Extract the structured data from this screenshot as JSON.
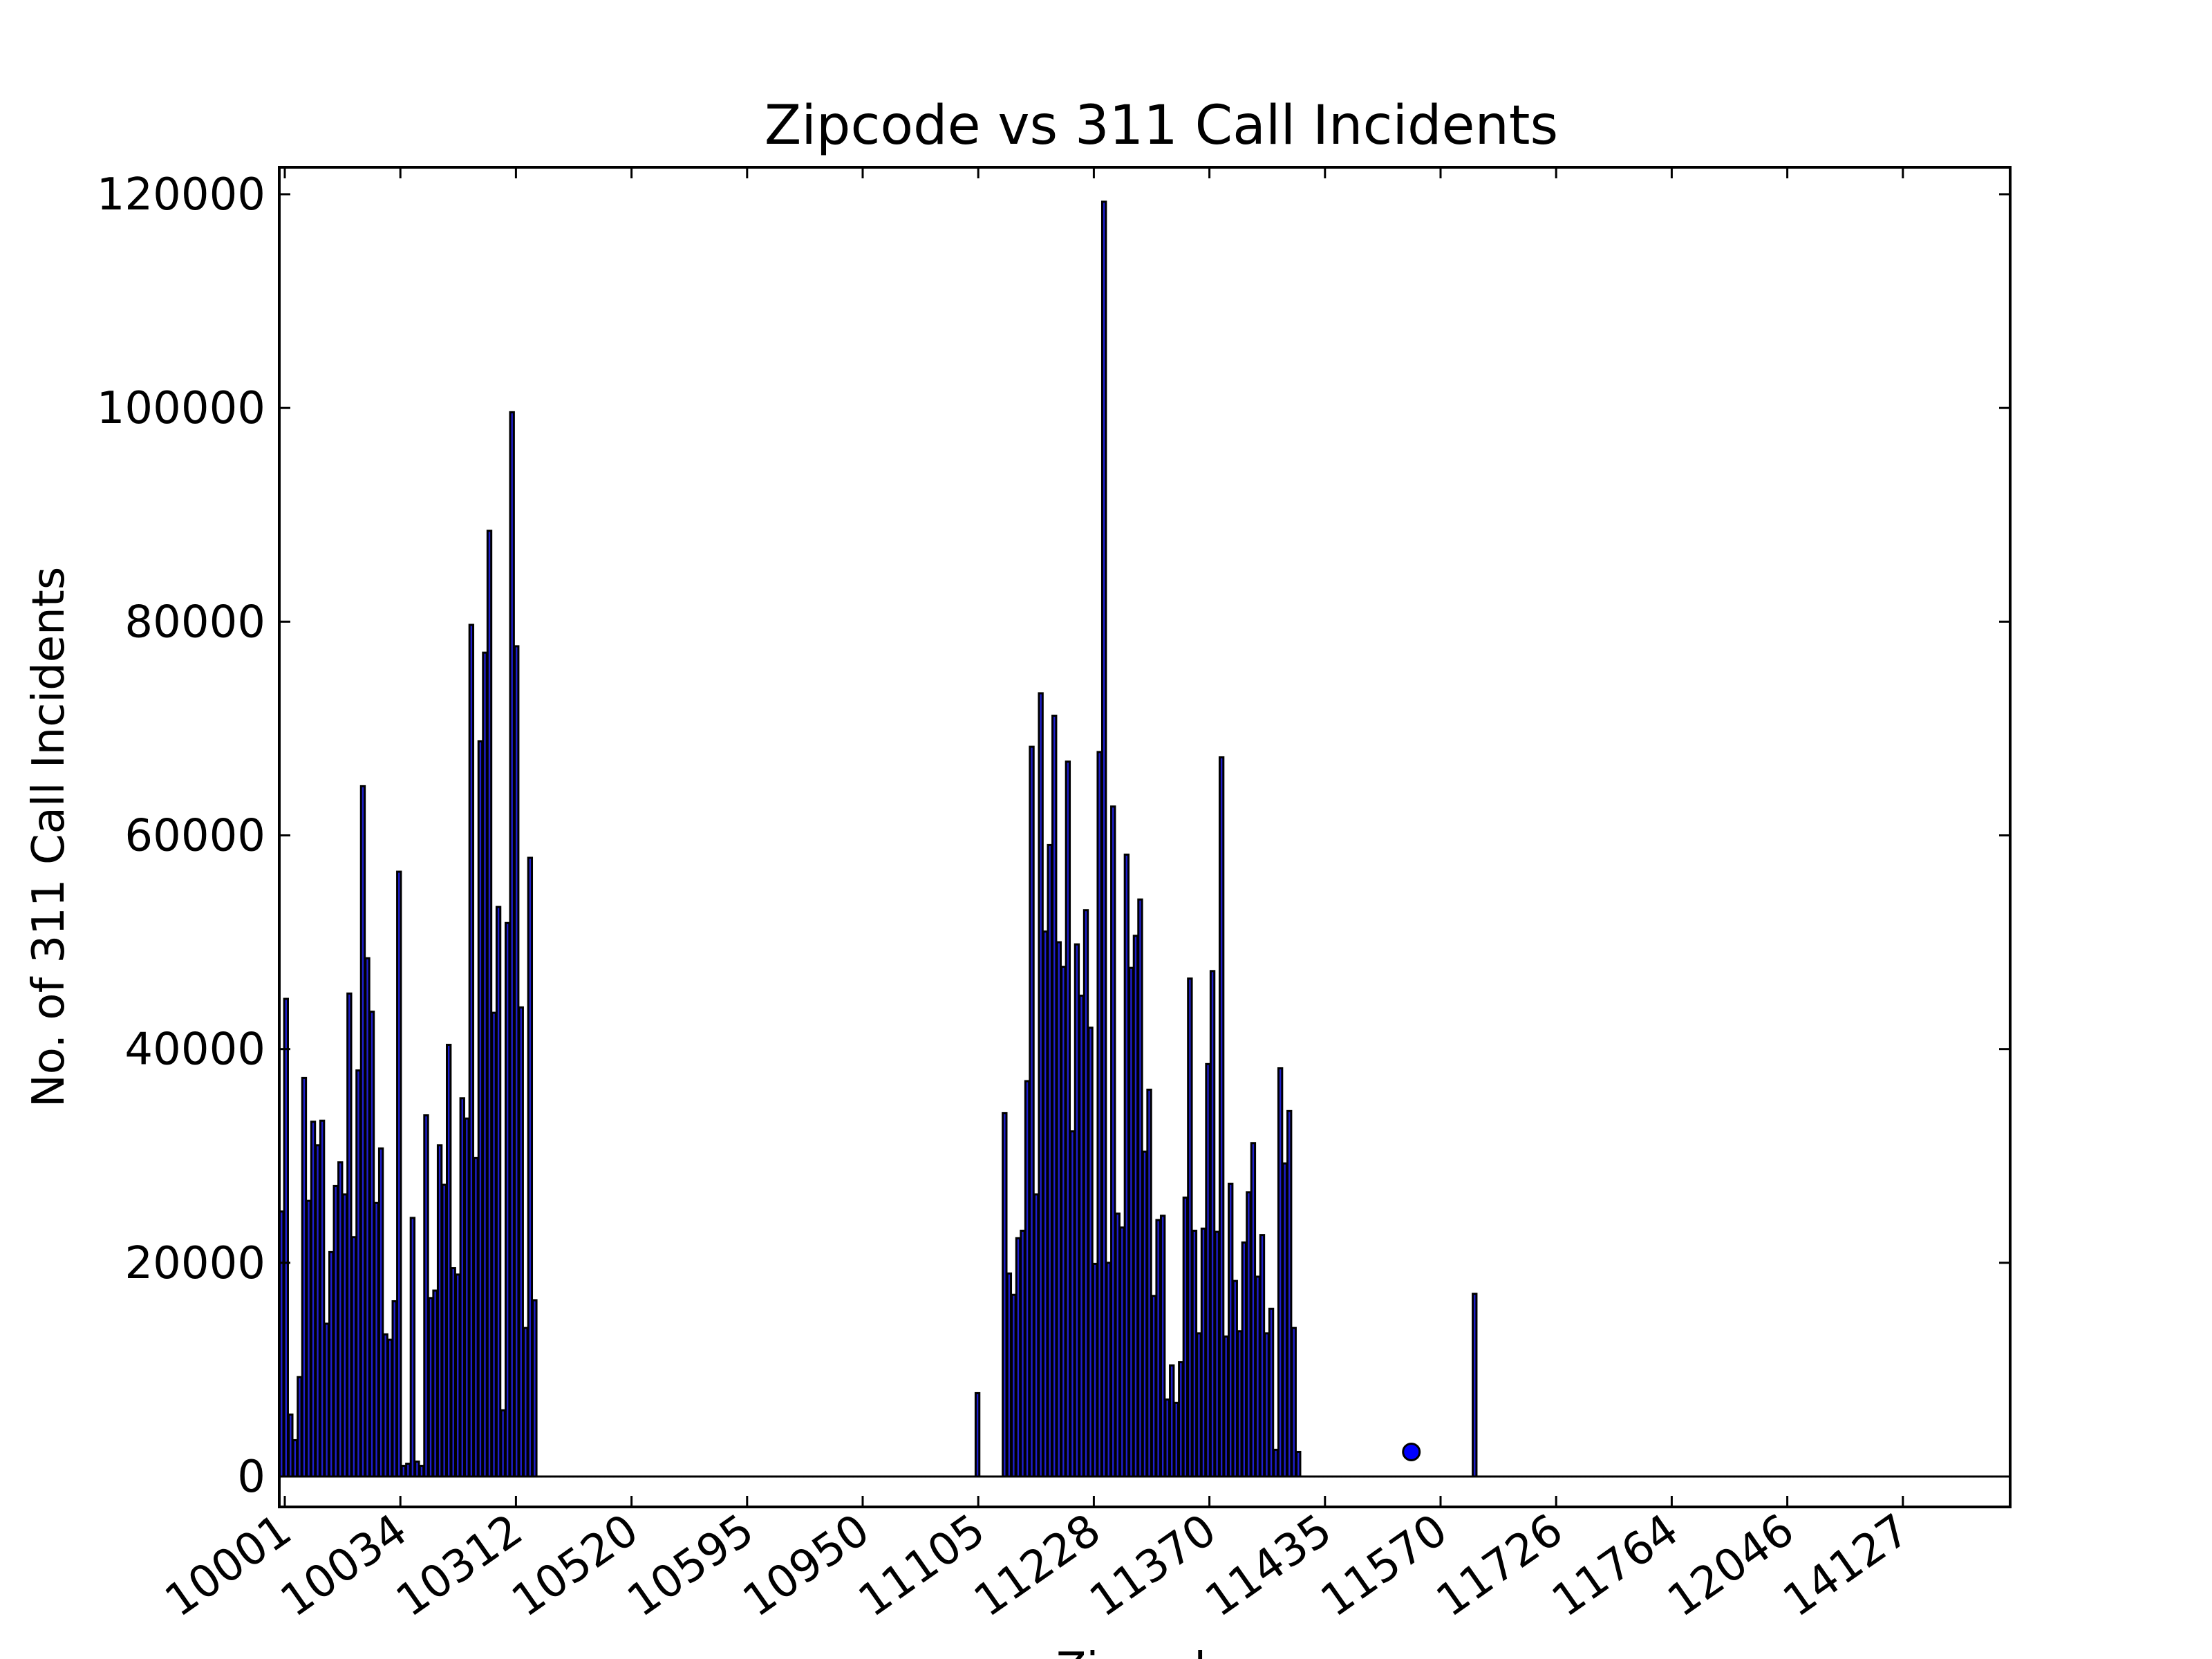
{
  "chart_data": {
    "type": "bar",
    "title": "Zipcode vs 311 Call Incidents",
    "xlabel": "Zipcode",
    "ylabel": "No. of 311 Call Incidents",
    "ylim": [
      0,
      122500
    ],
    "yticks": [
      0,
      20000,
      40000,
      60000,
      80000,
      100000,
      120000
    ],
    "x_tick_labels": [
      "10001",
      "10034",
      "10312",
      "10520",
      "10595",
      "10950",
      "11105",
      "11228",
      "11370",
      "11435",
      "11570",
      "11726",
      "11764",
      "12046",
      "14127"
    ],
    "grid": false,
    "bar_color": "#1f1fd0",
    "edge_color": "#000000",
    "values": [
      24800,
      44700,
      5800,
      3400,
      9300,
      37300,
      25800,
      33200,
      31000,
      33300,
      14300,
      21000,
      27200,
      29400,
      26400,
      45200,
      22400,
      38000,
      64600,
      48500,
      43500,
      25600,
      30700,
      13300,
      12800,
      16400,
      56600,
      1000,
      1200,
      24200,
      1400,
      1000,
      33800,
      16700,
      17400,
      31000,
      27300,
      40400,
      19500,
      18900,
      35400,
      33500,
      79700,
      29800,
      68800,
      77100,
      88500,
      43400,
      53300,
      6200,
      51800,
      99600,
      77700,
      43900,
      13900,
      57900,
      16500,
      0,
      0,
      0,
      0,
      0,
      0,
      0,
      0,
      0,
      0,
      0,
      0,
      0,
      0,
      0,
      0,
      0,
      0,
      0,
      0,
      0,
      0,
      0,
      0,
      0,
      0,
      0,
      0,
      0,
      0,
      0,
      0,
      0,
      0,
      0,
      0,
      0,
      0,
      0,
      0,
      0,
      0,
      0,
      0,
      0,
      0,
      0,
      0,
      0,
      0,
      0,
      0,
      0,
      0,
      0,
      0,
      0,
      0,
      0,
      0,
      0,
      0,
      0,
      0,
      0,
      0,
      0,
      0,
      0,
      0,
      0,
      0,
      0,
      0,
      0,
      0,
      0,
      0,
      0,
      0,
      0,
      0,
      0,
      0,
      0,
      0,
      0,
      0,
      0,
      0,
      0,
      0,
      0,
      0,
      0,
      0,
      0,
      7800,
      0,
      0,
      0,
      0,
      0,
      34000,
      19000,
      17000,
      22300,
      23000,
      37000,
      68300,
      26400,
      73300,
      51000,
      59100,
      71200,
      50000,
      47700,
      66900,
      32300,
      49800,
      45000,
      53000,
      42000,
      19900,
      67800,
      119300,
      20000,
      62700,
      24600,
      23300,
      58200,
      47600,
      50600,
      54000,
      30400,
      36200,
      16900,
      24000,
      24400,
      7200,
      10400,
      6900,
      10700,
      26100,
      46600,
      23000,
      13400,
      23200,
      38600,
      47300,
      22900,
      67300,
      13100,
      27400,
      18300,
      13600,
      21900,
      26600,
      31200,
      18700,
      22600,
      13400,
      15700,
      2500,
      38200,
      29300,
      34200,
      13900,
      2300,
      0,
      0,
      0,
      0,
      0,
      0,
      0,
      0,
      0,
      0,
      0,
      0,
      0,
      0,
      0,
      0,
      0,
      0,
      0,
      0,
      0,
      0,
      0,
      0,
      0,
      0,
      0,
      0,
      0,
      0,
      0,
      0,
      0,
      0,
      0,
      0,
      0,
      0,
      17100,
      0,
      0,
      0,
      0,
      0,
      0,
      0,
      0,
      0,
      0,
      0,
      0,
      0,
      0,
      0,
      0,
      0,
      0,
      0,
      0,
      0,
      0,
      0,
      0,
      0,
      0,
      0,
      0,
      0,
      0,
      0,
      0,
      0,
      0,
      0,
      0,
      0,
      0,
      0,
      0,
      0,
      0,
      0,
      0,
      0,
      0,
      0,
      0,
      0,
      0,
      0,
      0,
      0,
      0,
      0,
      0,
      0,
      0,
      0,
      0,
      0,
      0,
      0,
      0,
      0,
      0,
      0,
      0,
      0,
      0,
      0,
      0,
      0,
      0,
      0,
      0,
      0,
      0,
      0,
      0,
      0,
      0,
      0,
      0,
      0,
      0,
      0,
      0,
      0,
      0,
      0,
      0,
      0,
      0,
      0,
      0,
      0,
      0,
      0,
      0,
      0,
      0,
      0,
      0,
      0,
      0,
      0,
      0,
      0,
      0,
      0,
      0,
      0,
      0,
      0,
      0,
      0,
      0
    ],
    "marker": {
      "bar_index": 250,
      "value": 2300,
      "color": "#0000ff"
    }
  }
}
